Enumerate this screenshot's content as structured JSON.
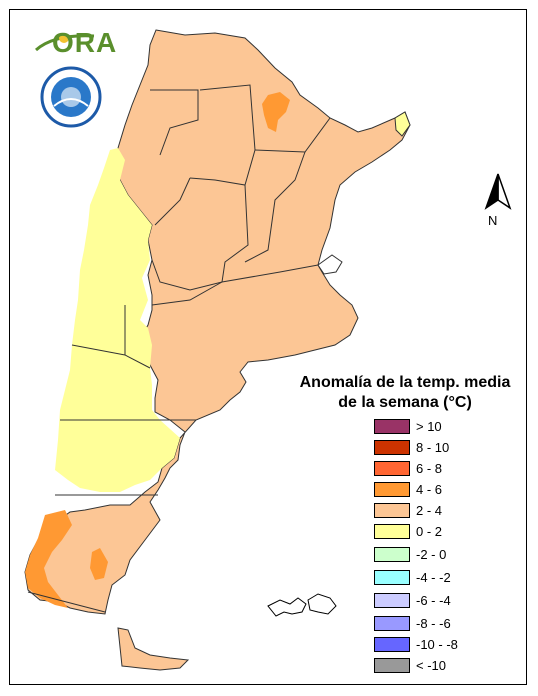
{
  "legend": {
    "title_line1": "Anomalía de la temp. media",
    "title_line2": "de la semana (°C)",
    "items": [
      {
        "label": "> 10",
        "color": "#993366"
      },
      {
        "label": "8 - 10",
        "color": "#cc3300"
      },
      {
        "label": "6 - 8",
        "color": "#ff6633"
      },
      {
        "label": "4 - 6",
        "color": "#ff9933"
      },
      {
        "label": "2 - 4",
        "color": "#fcc695"
      },
      {
        "label": "0 - 2",
        "color": "#ffff99"
      },
      {
        "label": "-2 - 0",
        "color": "#ccffcc"
      },
      {
        "label": "-4 - -2",
        "color": "#99ffff"
      },
      {
        "label": "-6 - -4",
        "color": "#ccccff"
      },
      {
        "label": "-8 - -6",
        "color": "#9999ff"
      },
      {
        "label": "-10 - -8",
        "color": "#6666ff"
      },
      {
        "label": "< -10",
        "color": "#999999"
      }
    ]
  },
  "north_arrow": {
    "label": "N",
    "icon": "north-arrow-icon"
  },
  "logos": {
    "ora_text": "ORA",
    "agency_seal": "smn-seal-icon"
  },
  "colors": {
    "boundary": "#333333",
    "frame": "#000000",
    "brand_green": "#5a8f2c"
  }
}
